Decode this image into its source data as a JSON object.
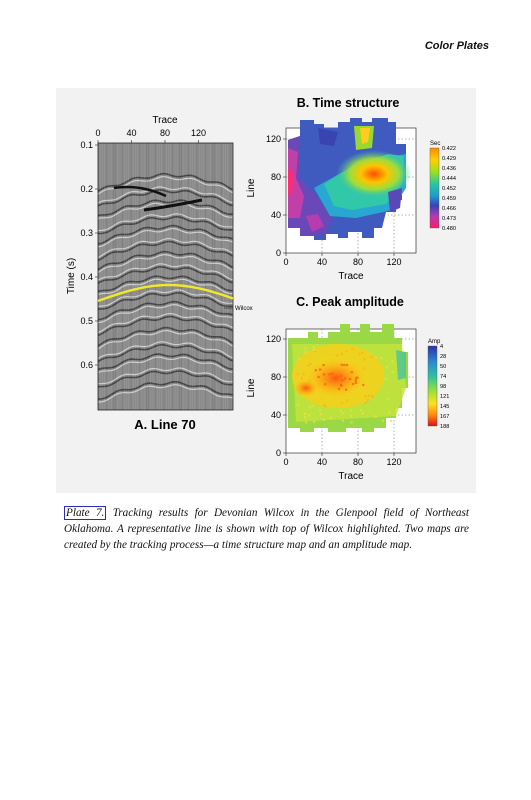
{
  "header": {
    "running_title": "Color Plates"
  },
  "figure": {
    "panel_a": {
      "title": "A. Line 70",
      "x_label": "Trace",
      "y_label": "Time (s)",
      "x_ticks": [
        "0",
        "40",
        "80",
        "120"
      ],
      "y_ticks": [
        "0.1",
        "0.2",
        "0.3",
        "0.4",
        "0.5",
        "0.6"
      ],
      "horizon_label": "Wilcox",
      "horizon_color": "#f2e82a"
    },
    "panel_b": {
      "title": "B. Time structure",
      "x_label": "Trace",
      "y_label": "Line",
      "x_ticks": [
        "0",
        "40",
        "80",
        "120"
      ],
      "y_ticks": [
        "0",
        "40",
        "80",
        "120"
      ],
      "legend_title": "Sec",
      "legend_values": [
        "0.422",
        "0.429",
        "0.436",
        "0.444",
        "0.452",
        "0.459",
        "0.466",
        "0.473",
        "0.480"
      ]
    },
    "panel_c": {
      "title": "C. Peak amplitude",
      "x_label": "Trace",
      "y_label": "Line",
      "x_ticks": [
        "0",
        "40",
        "80",
        "120"
      ],
      "y_ticks": [
        "0",
        "40",
        "80",
        "120"
      ],
      "legend_title": "Amp",
      "legend_values": [
        "4",
        "28",
        "50",
        "74",
        "98",
        "121",
        "145",
        "167",
        "188"
      ]
    }
  },
  "caption": {
    "plate_label": "Plate 7.",
    "text": "Tracking results for Devonian Wilcox in the Glenpool field of Northeast Oklahoma. A representative line is shown with top of Wilcox highlighted. Two maps are created by the tracking process—a time structure map and an amplitude map."
  }
}
